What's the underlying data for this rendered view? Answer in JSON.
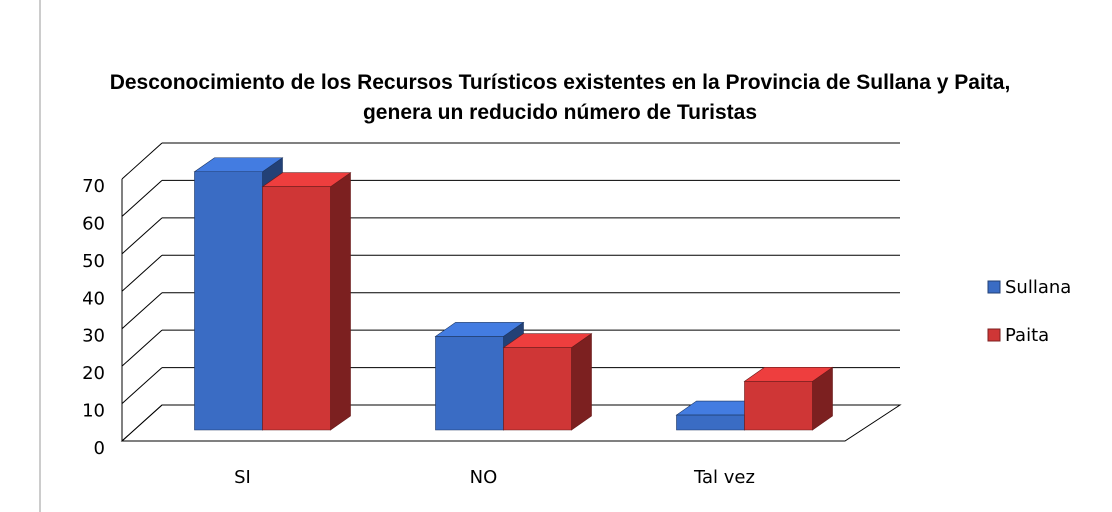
{
  "chart_data": {
    "type": "bar3d",
    "title": "Desconocimiento de los Recursos Turísticos existentes en la Provincia de Sullana y Paita, genera un reducido número de Turistas",
    "categories": [
      "SI",
      "NO",
      "Tal vez"
    ],
    "series": [
      {
        "name": "Sullana",
        "color": "#3a6cc4",
        "values": [
          69,
          25,
          4
        ]
      },
      {
        "name": "Paita",
        "color": "#cf3636",
        "values": [
          65,
          22,
          13
        ]
      }
    ],
    "ylim": [
      0,
      70
    ],
    "yticks": [
      0,
      10,
      20,
      30,
      40,
      50,
      60,
      70
    ],
    "grid": true,
    "legend": "right"
  }
}
